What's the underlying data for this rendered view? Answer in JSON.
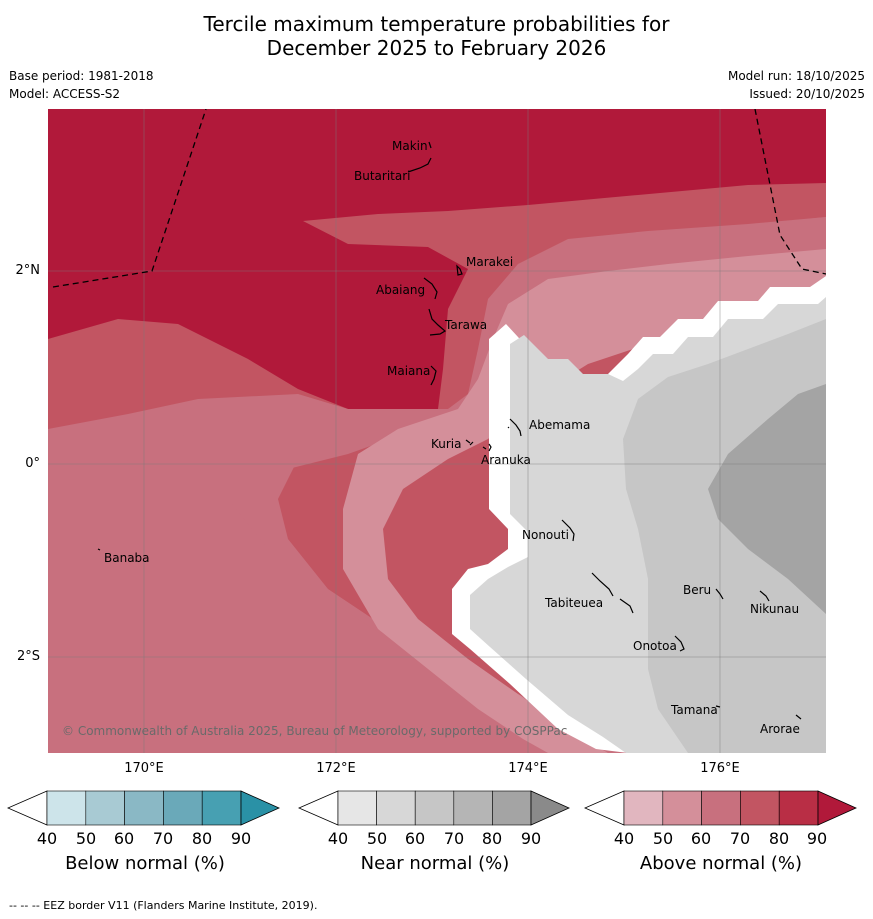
{
  "title": {
    "line1": "Tercile maximum temperature probabilities for",
    "line2": "December 2025 to February 2026"
  },
  "meta": {
    "base_period": "Base period: 1981-2018",
    "model": "Model: ACCESS-S2",
    "model_run": "Model run: 18/10/2025",
    "issued": "Issued: 20/10/2025"
  },
  "map": {
    "lat_labels": [
      "2°N",
      "0°",
      "2°S"
    ],
    "lon_labels": [
      "170°E",
      "172°E",
      "174°E",
      "176°E"
    ],
    "places": [
      "Makin",
      "Butaritari",
      "Marakei",
      "Abaiang",
      "Tarawa",
      "Maiana",
      "Abemama",
      "Kuria",
      "Aranuka",
      "Banaba",
      "Nonouti",
      "Tabiteuea",
      "Beru",
      "Nikunau",
      "Onotoa",
      "Tamana",
      "Arorae"
    ],
    "copyright": "© Commonwealth of Australia 2025, Bureau of Meteorology, supported by COSPPac"
  },
  "legend": {
    "ticks": [
      "40",
      "50",
      "60",
      "70",
      "80",
      "90"
    ],
    "below": {
      "title": "Below normal (%)",
      "colors": [
        "#ffffff",
        "#cde4ea",
        "#a8cad3",
        "#8ab8c5",
        "#6aa9b9",
        "#47a0b2",
        "#2a91a6"
      ]
    },
    "near": {
      "title": "Near normal (%)",
      "colors": [
        "#ffffff",
        "#e6e6e6",
        "#d7d7d7",
        "#c6c6c6",
        "#b5b5b5",
        "#a4a4a4",
        "#8a8a8a"
      ]
    },
    "above": {
      "title": "Above normal (%)",
      "colors": [
        "#ffffff",
        "#e1b6bf",
        "#d48f9a",
        "#c8707e",
        "#c25562",
        "#b92e45",
        "#b1193a"
      ]
    }
  },
  "footer": "--  --  -- EEZ border V11 (Flanders Marine Institute, 2019)."
}
